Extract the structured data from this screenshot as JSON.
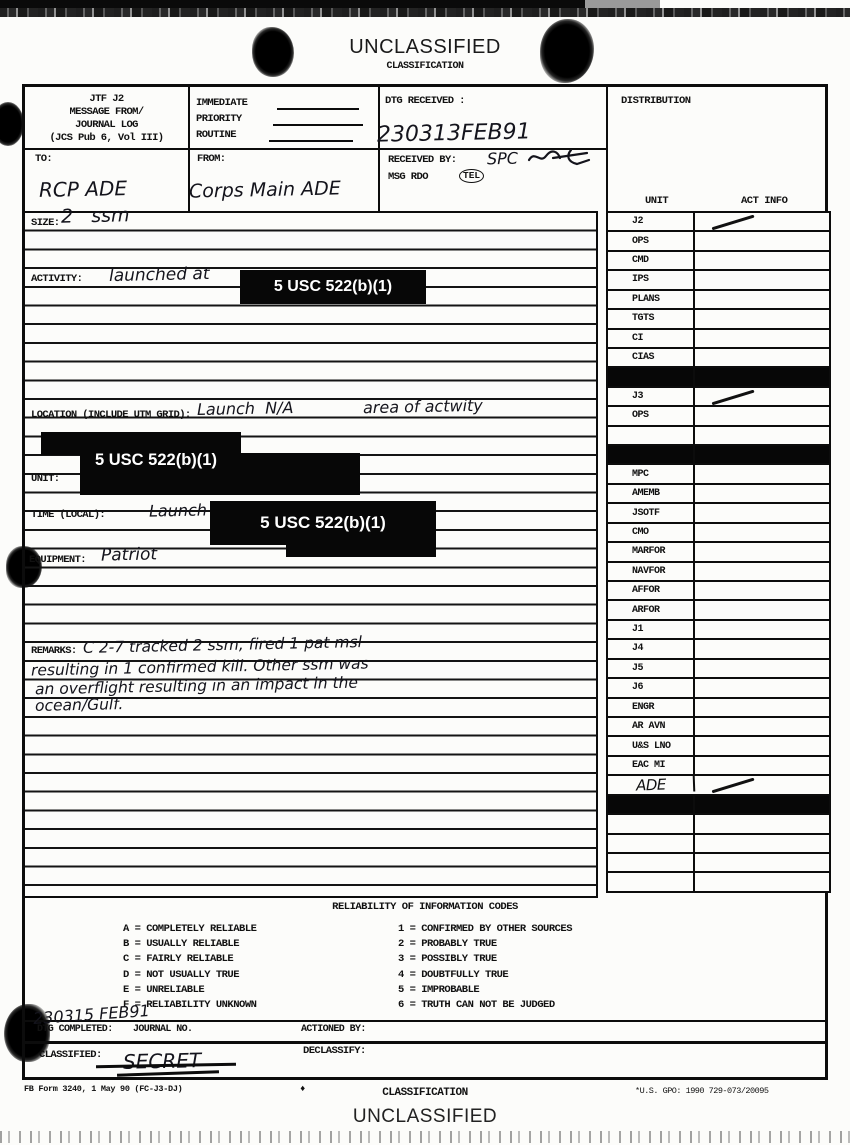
{
  "page": {
    "classification_top": "UNCLASSIFIED",
    "classification_top_label": "CLASSIFICATION",
    "classification_bottom": "UNCLASSIFIED",
    "classification_bottom_label": "CLASSIFICATION",
    "form_number": "FB Form 3240, 1 May 90 (FC-J3-DJ)",
    "print_mark": "♦",
    "gpo_note": "*U.S. GPO: 1990 729-073/20095"
  },
  "form": {
    "title_block": {
      "line1": "JTF J2",
      "line2": "MESSAGE FROM/",
      "line3": "JOURNAL LOG",
      "line4": "(JCS Pub 6, Vol III)"
    },
    "precedence": {
      "immediate": "IMMEDIATE",
      "priority": "PRIORITY",
      "routine": "ROUTINE"
    },
    "dtg_received": {
      "label": "DTG RECEIVED :",
      "value": "230313FEB91"
    },
    "to": {
      "label": "TO:",
      "value": "RCP ADE"
    },
    "from": {
      "label": "FROM:",
      "value": "Corps Main ADE"
    },
    "received_by": {
      "label": "RECEIVED BY:",
      "value": "SPC",
      "msg_rdo": "MSG RDO",
      "tel": "TEL"
    },
    "size": {
      "label": "SIZE:",
      "value": "2   ssm"
    },
    "activity": {
      "label": "ACTIVITY:",
      "value": "launched at",
      "redaction": "5 USC 522(b)(1)"
    },
    "location": {
      "label": "LOCATION (INCLUDE UTM GRID):",
      "value_a": "Launch  N/A",
      "value_b": "area of actwity",
      "redaction": "5 USC 522(b)(1)"
    },
    "unit": {
      "label": "UNIT:"
    },
    "time_local": {
      "label": "TIME (LOCAL):",
      "value": "Launch",
      "redaction": "5 USC 522(b)(1)"
    },
    "equipment": {
      "label": "EQUIPMENT:",
      "value": "Patriot"
    },
    "remarks": {
      "label": "REMARKS:",
      "lines": [
        "C 2-7 tracked 2 ssm, fired 1 pat msl",
        "resulting in 1 confirmed kill. Other ssm was",
        "an overflight resulting in an impact in the",
        "ocean/Gulf."
      ]
    },
    "distribution": {
      "header": "DISTRIBUTION",
      "unit_col": "UNIT",
      "act_info_col": "ACT INFO",
      "rows": [
        {
          "unit": "J2",
          "slash": true
        },
        {
          "unit": "OPS"
        },
        {
          "unit": "CMD"
        },
        {
          "unit": "IPS"
        },
        {
          "unit": "PLANS"
        },
        {
          "unit": "TGTS"
        },
        {
          "unit": "CI"
        },
        {
          "unit": "CIAS"
        },
        {
          "redacted": true
        },
        {
          "unit": "J3",
          "slash": true
        },
        {
          "unit": "OPS"
        },
        {
          "empty": true
        },
        {
          "redacted": true
        },
        {
          "unit": "MPC"
        },
        {
          "unit": "AMEMB"
        },
        {
          "unit": "JSOTF"
        },
        {
          "unit": "CMO"
        },
        {
          "unit": "MARFOR"
        },
        {
          "unit": "NAVFOR"
        },
        {
          "unit": "AFFOR"
        },
        {
          "unit": "ARFOR"
        },
        {
          "unit": "J1"
        },
        {
          "unit": "J4"
        },
        {
          "unit": "J5"
        },
        {
          "unit": "J6"
        },
        {
          "unit": "ENGR"
        },
        {
          "unit": "AR AVN"
        },
        {
          "unit": "U&S LNO"
        },
        {
          "unit": "EAC MI"
        },
        {
          "unit": "ADE",
          "slash": true,
          "handwritten": true
        },
        {
          "redacted": true
        },
        {
          "empty": true
        },
        {
          "empty": true
        },
        {
          "empty": true
        },
        {
          "empty": true
        }
      ]
    },
    "reliability": {
      "title": "RELIABILITY OF INFORMATION CODES",
      "letter_codes": [
        "A = COMPLETELY RELIABLE",
        "B = USUALLY RELIABLE",
        "C = FAIRLY RELIABLE",
        "D = NOT USUALLY TRUE",
        "E = UNRELIABLE",
        "F = RELIABILITY UNKNOWN"
      ],
      "number_codes": [
        "1 = CONFIRMED BY OTHER SOURCES",
        "2 = PROBABLY TRUE",
        "3 = POSSIBLY TRUE",
        "4 = DOUBTFULLY TRUE",
        "5 = IMPROBABLE",
        "6 = TRUTH CAN NOT BE JUDGED"
      ]
    },
    "completion": {
      "dtg_completed_label": "DTG COMPLETED:",
      "dtg_completed_value": "230315 FEB91",
      "journal_no_label": "JOURNAL NO.",
      "actioned_by_label": "ACTIONED BY:",
      "classified_label": "CLASSIFIED:",
      "classified_value": "SECRET",
      "declassify_label": "DECLASSIFY:"
    }
  }
}
